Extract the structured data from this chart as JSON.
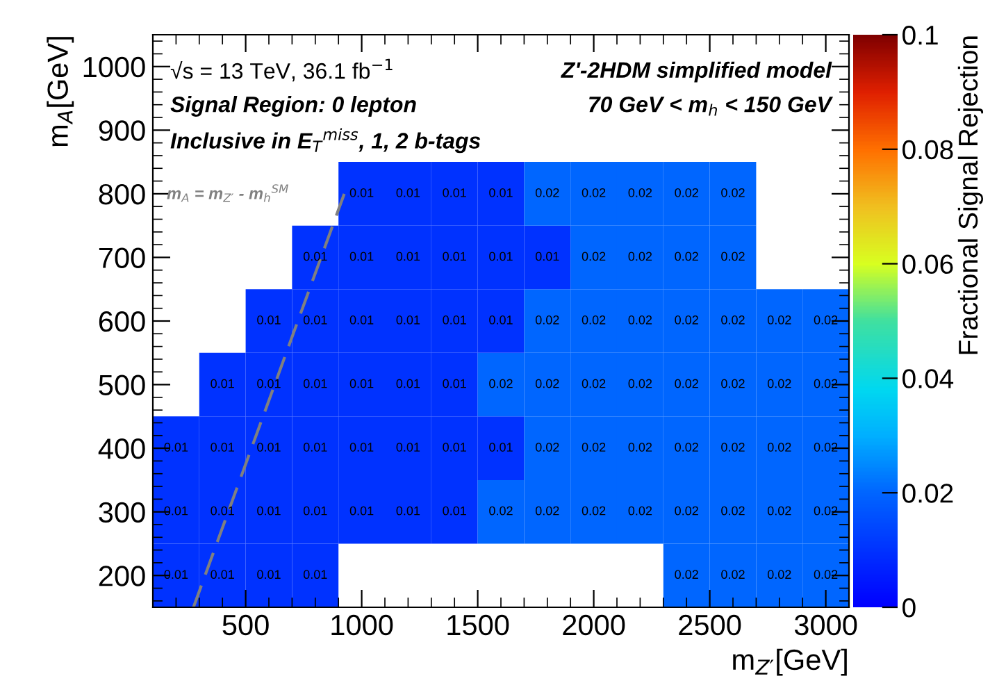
{
  "chart_data": {
    "type": "heatmap",
    "xlabel": "m$_{Z′}$[GeV]",
    "ylabel": "m$_{A}$[GeV]",
    "clabel": "Fractional Signal Rejection",
    "annotations": [
      "√s = 13 TeV, 36.1 fb$^{−1}$",
      "Signal Region: 0 lepton",
      "Inclusive in E$_{T}$$^{miss}$, 1, 2 b-tags",
      "Z'-2HDM simplified model",
      "70 GeV < m$_{h}$ < 150 GeV"
    ],
    "x": [
      200,
      400,
      600,
      800,
      1000,
      1200,
      1400,
      1600,
      1800,
      2000,
      2200,
      2400,
      2600,
      2800,
      3000
    ],
    "y": [
      800,
      700,
      600,
      500,
      400,
      300,
      200
    ],
    "cells": [
      [
        null,
        null,
        null,
        null,
        0.01,
        0.01,
        0.01,
        0.01,
        0.02,
        0.02,
        0.02,
        0.02,
        0.02,
        null,
        null
      ],
      [
        null,
        null,
        null,
        0.01,
        0.01,
        0.01,
        0.01,
        0.01,
        0.01,
        0.02,
        0.02,
        0.02,
        0.02,
        null,
        null
      ],
      [
        null,
        null,
        0.01,
        0.01,
        0.01,
        0.01,
        0.01,
        0.01,
        0.02,
        0.02,
        0.02,
        0.02,
        0.02,
        0.02,
        0.02
      ],
      [
        null,
        0.01,
        0.01,
        0.01,
        0.01,
        0.01,
        0.01,
        0.02,
        0.02,
        0.02,
        0.02,
        0.02,
        0.02,
        0.02,
        0.02
      ],
      [
        0.01,
        0.01,
        0.01,
        0.01,
        0.01,
        0.01,
        0.01,
        0.01,
        0.02,
        0.02,
        0.02,
        0.02,
        0.02,
        0.02,
        0.02
      ],
      [
        0.01,
        0.01,
        0.01,
        0.01,
        0.01,
        0.01,
        0.01,
        0.02,
        0.02,
        0.02,
        0.02,
        0.02,
        0.02,
        0.02,
        0.02
      ],
      [
        0.01,
        0.01,
        0.01,
        0.01,
        null,
        null,
        null,
        null,
        null,
        null,
        null,
        0.02,
        0.02,
        0.02,
        0.02
      ]
    ],
    "data_labels": true,
    "series": [
      {
        "type": "line",
        "name": "m$_{A}$ = m$_{Z′}$ - m$_{h}$$^{SM}$",
        "color": "#808080",
        "line_style": "dashed",
        "x": [
          275,
          925
        ],
        "values": [
          150,
          800
        ],
        "value_labels": [
          null,
          null
        ]
      }
    ],
    "xlim": [
      100,
      3100
    ],
    "xticks": [
      500,
      1000,
      1500,
      2000,
      2500,
      3000
    ],
    "ylim": [
      150,
      1050
    ],
    "yticks": [
      200,
      300,
      400,
      500,
      600,
      700,
      800,
      900,
      1000
    ],
    "clim": [
      0,
      0.1
    ],
    "cticks": [
      0,
      0.02,
      0.04,
      0.06,
      0.08,
      0.1
    ],
    "grid": false,
    "legend": false
  }
}
